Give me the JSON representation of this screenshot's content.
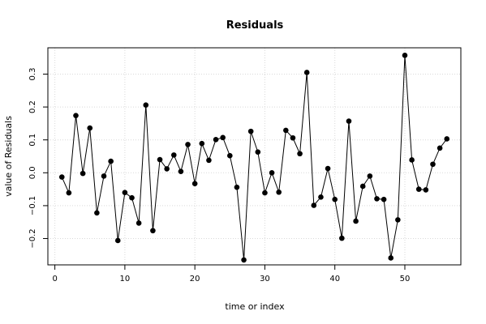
{
  "chart_data": {
    "type": "line",
    "title": "Residuals",
    "xlabel": "time or index",
    "ylabel": "value of Residuals",
    "xlim": [
      -1,
      58
    ],
    "ylim": [
      -0.28,
      0.38
    ],
    "xticks": [
      0,
      10,
      20,
      30,
      40,
      50
    ],
    "yticks": [
      -0.2,
      -0.1,
      0.0,
      0.1,
      0.2,
      0.3
    ],
    "xtick_labels": [
      "0",
      "10",
      "20",
      "30",
      "40",
      "50"
    ],
    "ytick_labels": [
      "−0.2",
      "−0.1",
      "0.0",
      "0.1",
      "0.2",
      "0.3"
    ],
    "grid": true,
    "line_color": "#000000",
    "marker_color": "#000000",
    "grid_color": "#d9d9d9",
    "x": [
      1,
      2,
      3,
      4,
      5,
      6,
      7,
      8,
      9,
      10,
      11,
      12,
      13,
      14,
      15,
      16,
      17,
      18,
      19,
      20,
      21,
      22,
      23,
      24,
      25,
      26,
      27,
      28,
      29,
      30,
      31,
      32,
      33,
      34,
      35,
      36,
      37,
      38,
      39,
      40,
      41,
      42,
      43,
      44,
      45,
      46,
      47,
      48,
      49,
      50,
      51,
      52,
      53,
      54,
      55,
      56
    ],
    "values": [
      -0.013,
      -0.061,
      0.174,
      -0.002,
      0.136,
      -0.122,
      -0.01,
      0.035,
      -0.206,
      -0.06,
      -0.076,
      -0.153,
      0.206,
      -0.176,
      0.04,
      0.012,
      0.054,
      0.004,
      0.086,
      -0.033,
      0.089,
      0.038,
      0.101,
      0.107,
      0.052,
      -0.044,
      -0.265,
      0.126,
      0.063,
      -0.061,
      0.0,
      -0.059,
      0.129,
      0.106,
      0.058,
      0.305,
      -0.099,
      -0.074,
      0.013,
      -0.081,
      -0.199,
      0.157,
      -0.147,
      -0.041,
      -0.01,
      -0.079,
      -0.081,
      -0.259,
      -0.143,
      0.357,
      0.039,
      -0.05,
      -0.052,
      0.026,
      0.075,
      0.103
    ]
  }
}
